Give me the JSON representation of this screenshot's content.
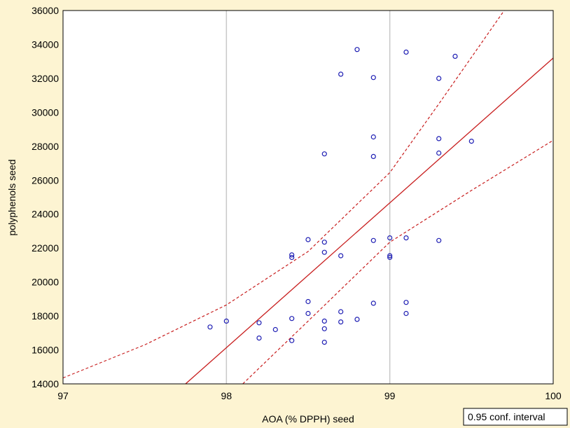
{
  "chart_data": {
    "type": "scatter",
    "xlabel": "AOA (% DPPH) seed",
    "ylabel": "polyphenols seed",
    "xlim": [
      97,
      100
    ],
    "ylim": [
      14000,
      36000
    ],
    "xticks": [
      97,
      98,
      99,
      100
    ],
    "yticks": [
      14000,
      16000,
      18000,
      20000,
      22000,
      24000,
      26000,
      28000,
      30000,
      32000,
      34000,
      36000
    ],
    "grid": "vertical lines at 98 and 99",
    "legend": {
      "text": "0.95 conf. interval",
      "placement": "bottom-right"
    },
    "points": [
      {
        "x": 97.9,
        "y": 17350
      },
      {
        "x": 98.0,
        "y": 17700
      },
      {
        "x": 98.2,
        "y": 17600
      },
      {
        "x": 98.2,
        "y": 16700
      },
      {
        "x": 98.3,
        "y": 17200
      },
      {
        "x": 98.4,
        "y": 17850
      },
      {
        "x": 98.4,
        "y": 16550
      },
      {
        "x": 98.4,
        "y": 21450
      },
      {
        "x": 98.4,
        "y": 21600
      },
      {
        "x": 98.5,
        "y": 18850
      },
      {
        "x": 98.5,
        "y": 18150
      },
      {
        "x": 98.5,
        "y": 22500
      },
      {
        "x": 98.6,
        "y": 17700
      },
      {
        "x": 98.6,
        "y": 17250
      },
      {
        "x": 98.6,
        "y": 16450
      },
      {
        "x": 98.6,
        "y": 22350
      },
      {
        "x": 98.6,
        "y": 21750
      },
      {
        "x": 98.6,
        "y": 27550
      },
      {
        "x": 98.7,
        "y": 18250
      },
      {
        "x": 98.7,
        "y": 17650
      },
      {
        "x": 98.7,
        "y": 21550
      },
      {
        "x": 98.7,
        "y": 32250
      },
      {
        "x": 98.8,
        "y": 17800
      },
      {
        "x": 98.8,
        "y": 33700
      },
      {
        "x": 98.9,
        "y": 18750
      },
      {
        "x": 98.9,
        "y": 22450
      },
      {
        "x": 98.9,
        "y": 27400
      },
      {
        "x": 98.9,
        "y": 28550
      },
      {
        "x": 98.9,
        "y": 32050
      },
      {
        "x": 99.0,
        "y": 22600
      },
      {
        "x": 99.0,
        "y": 21550
      },
      {
        "x": 99.0,
        "y": 21450
      },
      {
        "x": 99.1,
        "y": 18800
      },
      {
        "x": 99.1,
        "y": 18150
      },
      {
        "x": 99.1,
        "y": 22600
      },
      {
        "x": 99.1,
        "y": 33550
      },
      {
        "x": 99.3,
        "y": 22450
      },
      {
        "x": 99.3,
        "y": 27600
      },
      {
        "x": 99.3,
        "y": 28450
      },
      {
        "x": 99.3,
        "y": 32000
      },
      {
        "x": 99.4,
        "y": 33300
      },
      {
        "x": 99.5,
        "y": 28300
      }
    ],
    "fit_line": {
      "points": [
        [
          97.75,
          14000
        ],
        [
          100,
          33200
        ]
      ]
    },
    "conf_upper": [
      [
        97,
        14350
      ],
      [
        97.5,
        16300
      ],
      [
        98,
        18650
      ],
      [
        98.5,
        21800
      ],
      [
        99,
        26450
      ],
      [
        99.3,
        30500
      ],
      [
        99.7,
        36000
      ]
    ],
    "conf_lower": [
      [
        98.1,
        14000
      ],
      [
        98.5,
        17700
      ],
      [
        99,
        22350
      ],
      [
        99.5,
        25400
      ],
      [
        100,
        28350
      ]
    ],
    "colors": {
      "background": "#FDF4D2",
      "plot_area": "#FFFFFF",
      "points": "#1F1FB4",
      "fit": "#C81E1E",
      "grid": "#C8C8C8"
    }
  }
}
